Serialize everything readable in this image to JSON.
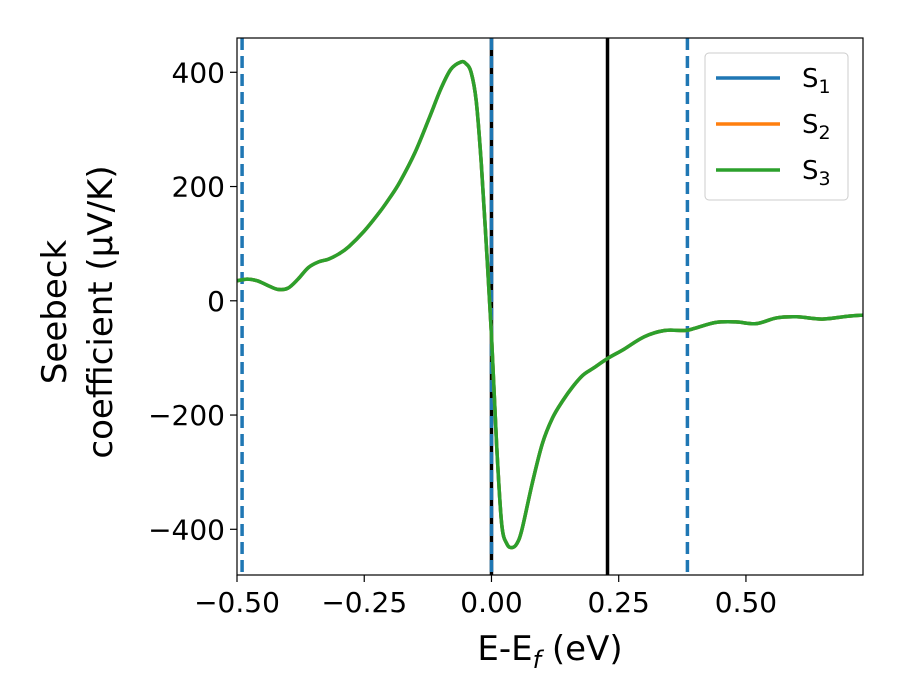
{
  "chart_data": {
    "type": "line",
    "xlabel": {
      "main": "E-E",
      "sub": "f",
      "suffix": " (eV)"
    },
    "ylabel": {
      "line1": "Seebeck",
      "line2": "coefficient  (μV/K)"
    },
    "xlim": [
      -0.5,
      0.73
    ],
    "ylim": [
      -480,
      460
    ],
    "xticks": [
      -0.5,
      -0.25,
      0.0,
      0.25,
      0.5
    ],
    "xtick_labels": [
      "−0.50",
      "−0.25",
      "0.00",
      "0.25",
      "0.50"
    ],
    "yticks": [
      -400,
      -200,
      0,
      200,
      400
    ],
    "ytick_labels": [
      "−400",
      "−200",
      "0",
      "200",
      "400"
    ],
    "grid": false,
    "legend_position": "top-right",
    "vertical_lines": [
      {
        "x": -0.49,
        "style": "dashed",
        "color": "#1f77b4"
      },
      {
        "x": 0.0,
        "style": "solid",
        "color": "#000000"
      },
      {
        "x": 0.0,
        "style": "dashed",
        "color": "#1f77b4"
      },
      {
        "x": 0.228,
        "style": "solid",
        "color": "#000000"
      },
      {
        "x": 0.385,
        "style": "dashed",
        "color": "#1f77b4"
      }
    ],
    "series": [
      {
        "name": "S",
        "sub": "1",
        "color": "#1f77b4",
        "x": [
          -0.5,
          -0.48,
          -0.46,
          -0.44,
          -0.42,
          -0.4,
          -0.38,
          -0.36,
          -0.34,
          -0.32,
          -0.3,
          -0.28,
          -0.25,
          -0.22,
          -0.2,
          -0.18,
          -0.15,
          -0.12,
          -0.1,
          -0.08,
          -0.06,
          -0.05,
          -0.04,
          -0.03,
          -0.02,
          -0.01,
          0.0,
          0.01,
          0.02,
          0.03,
          0.04,
          0.05,
          0.06,
          0.08,
          0.1,
          0.12,
          0.14,
          0.16,
          0.18,
          0.2,
          0.23,
          0.26,
          0.3,
          0.34,
          0.38,
          0.4,
          0.44,
          0.48,
          0.52,
          0.56,
          0.6,
          0.65,
          0.7,
          0.73
        ],
        "y": [
          35,
          38,
          35,
          27,
          20,
          22,
          38,
          58,
          68,
          73,
          82,
          95,
          122,
          155,
          180,
          208,
          260,
          325,
          370,
          405,
          418,
          415,
          400,
          350,
          240,
          95,
          -60,
          -250,
          -390,
          -425,
          -432,
          -425,
          -400,
          -320,
          -250,
          -205,
          -175,
          -150,
          -130,
          -118,
          -100,
          -85,
          -63,
          -52,
          -52,
          -48,
          -38,
          -37,
          -40,
          -30,
          -28,
          -32,
          -27,
          -25
        ]
      },
      {
        "name": "S",
        "sub": "2",
        "color": "#ff7f0e",
        "x": [
          -0.5,
          -0.48,
          -0.46,
          -0.44,
          -0.42,
          -0.4,
          -0.38,
          -0.36,
          -0.34,
          -0.32,
          -0.3,
          -0.28,
          -0.25,
          -0.22,
          -0.2,
          -0.18,
          -0.15,
          -0.12,
          -0.1,
          -0.08,
          -0.06,
          -0.05,
          -0.04,
          -0.03,
          -0.02,
          -0.01,
          0.0,
          0.01,
          0.02,
          0.03,
          0.04,
          0.05,
          0.06,
          0.08,
          0.1,
          0.12,
          0.14,
          0.16,
          0.18,
          0.2,
          0.23,
          0.26,
          0.3,
          0.34,
          0.38,
          0.4,
          0.44,
          0.48,
          0.52,
          0.56,
          0.6,
          0.65,
          0.7,
          0.73
        ],
        "y": [
          35,
          38,
          35,
          27,
          20,
          22,
          38,
          58,
          68,
          73,
          82,
          95,
          122,
          155,
          180,
          208,
          260,
          325,
          370,
          405,
          418,
          415,
          400,
          350,
          240,
          95,
          -60,
          -250,
          -390,
          -425,
          -432,
          -425,
          -400,
          -320,
          -250,
          -205,
          -175,
          -150,
          -130,
          -118,
          -100,
          -85,
          -63,
          -52,
          -52,
          -48,
          -38,
          -37,
          -40,
          -30,
          -28,
          -32,
          -27,
          -25
        ]
      },
      {
        "name": "S",
        "sub": "3",
        "color": "#2ca02c",
        "x": [
          -0.5,
          -0.48,
          -0.46,
          -0.44,
          -0.42,
          -0.4,
          -0.38,
          -0.36,
          -0.34,
          -0.32,
          -0.3,
          -0.28,
          -0.25,
          -0.22,
          -0.2,
          -0.18,
          -0.15,
          -0.12,
          -0.1,
          -0.08,
          -0.06,
          -0.05,
          -0.04,
          -0.03,
          -0.02,
          -0.01,
          0.0,
          0.01,
          0.02,
          0.03,
          0.04,
          0.05,
          0.06,
          0.08,
          0.1,
          0.12,
          0.14,
          0.16,
          0.18,
          0.2,
          0.23,
          0.26,
          0.3,
          0.34,
          0.38,
          0.4,
          0.44,
          0.48,
          0.52,
          0.56,
          0.6,
          0.65,
          0.7,
          0.73
        ],
        "y": [
          35,
          38,
          35,
          27,
          20,
          22,
          38,
          58,
          68,
          73,
          82,
          95,
          122,
          155,
          180,
          208,
          260,
          325,
          370,
          405,
          418,
          415,
          400,
          350,
          240,
          95,
          -60,
          -250,
          -390,
          -425,
          -432,
          -425,
          -400,
          -320,
          -250,
          -205,
          -175,
          -150,
          -130,
          -118,
          -100,
          -85,
          -63,
          -52,
          -52,
          -48,
          -38,
          -37,
          -40,
          -30,
          -28,
          -32,
          -27,
          -25
        ]
      }
    ]
  }
}
